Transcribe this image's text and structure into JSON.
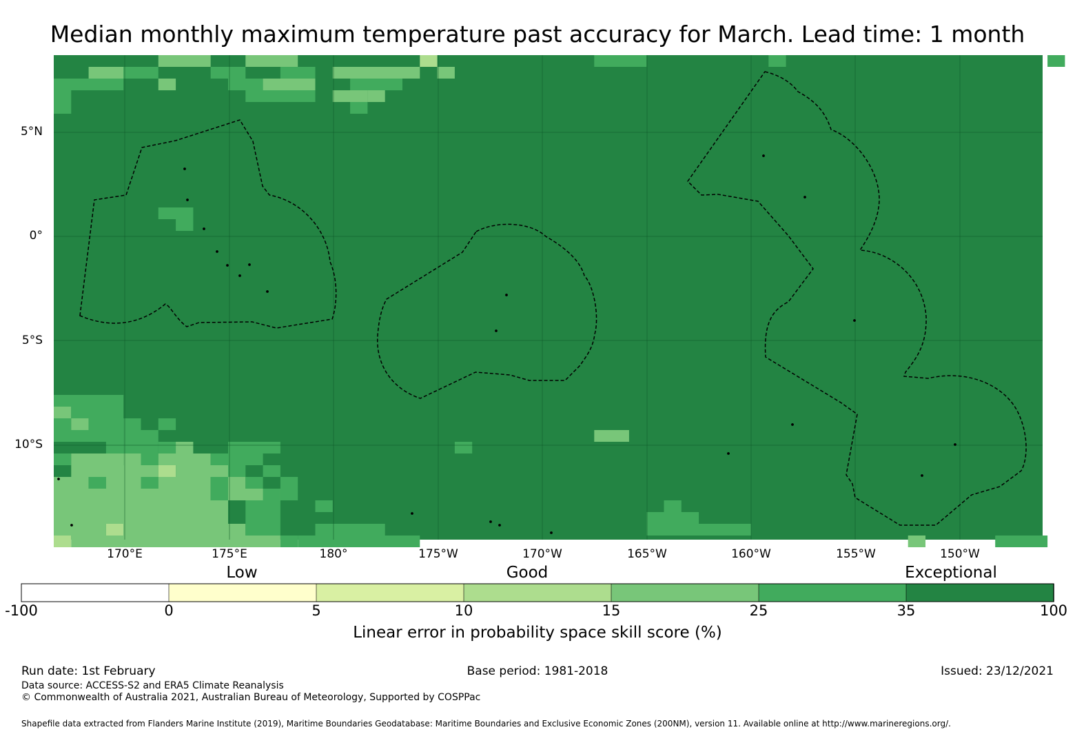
{
  "title": "Median monthly maximum temperature past accuracy for March. Lead time: 1 month",
  "map": {
    "lat_labels": [
      "5°N",
      "0°",
      "5°S",
      "10°S"
    ],
    "lon_labels": [
      "170°E",
      "175°E",
      "180°",
      "175°W",
      "170°W",
      "165°W",
      "160°W",
      "155°W",
      "150°W"
    ],
    "base_color": "#238443"
  },
  "legend": {
    "qualitative": [
      "Low",
      "Good",
      "Exceptional"
    ],
    "tick_labels": [
      "-100",
      "0",
      "5",
      "10",
      "15",
      "25",
      "35",
      "100"
    ],
    "colors": [
      "#ffffff",
      "#ffffcc",
      "#d9f0a3",
      "#addd8e",
      "#78c679",
      "#41ab5d",
      "#238443"
    ],
    "label": "Linear error in probability space skill score (%)"
  },
  "footer": {
    "run_date": "Run date: 1st February",
    "base_period": "Base period: 1981-2018",
    "issued": "Issued: 23/12/2021",
    "data_source": "Data source: ACCESS-S2 and ERA5 Climate Reanalysis",
    "copyright": "© Commonwealth of Australia 2021, Australian Bureau of Meteorology, Supported by COSPPac",
    "shapefile": "Shapefile data extracted from Flanders Marine Institute (2019), Maritime Boundaries Geodatabase: Maritime Boundaries and Exclusive Economic Zones (200NM), version 11. Available online at http://www.marineregions.org/."
  }
}
